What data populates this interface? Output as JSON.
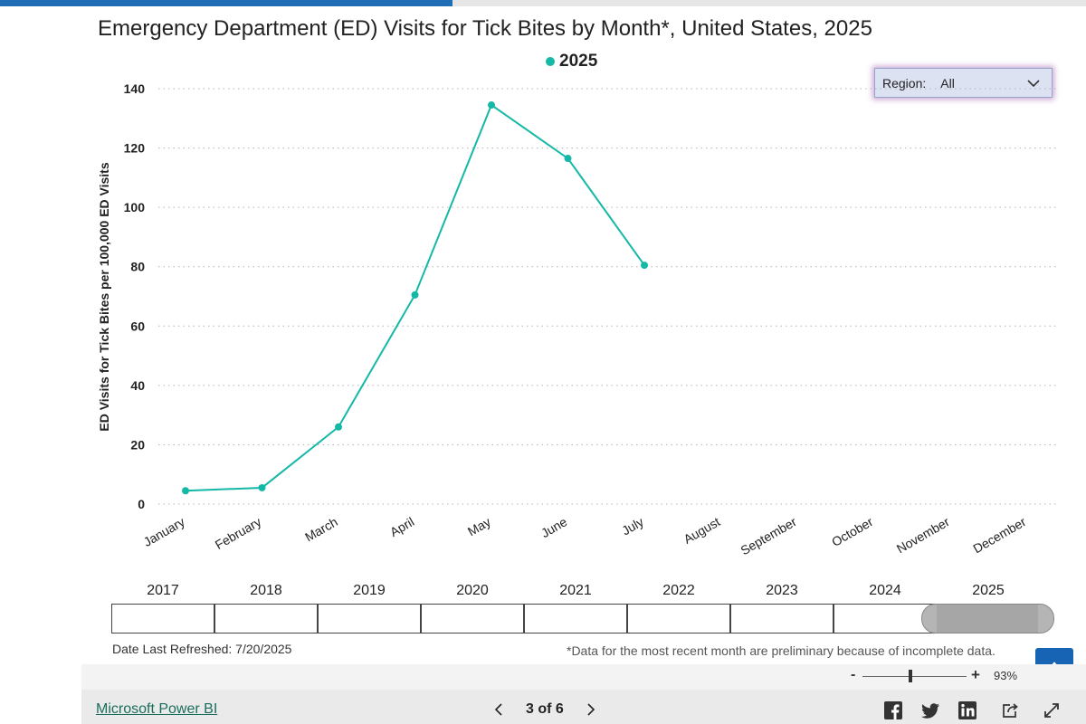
{
  "title": "Emergency Department (ED) Visits for Tick Bites by Month*, United States, 2025",
  "legend": {
    "label": "2025",
    "color": "#14b8a6"
  },
  "region_filter": {
    "label": "Region:",
    "value": "All"
  },
  "chart_data": {
    "type": "line",
    "title": "Emergency Department (ED) Visits for Tick Bites by Month*, United States, 2025",
    "ylabel": "ED Visits for Tick Bites per 100,000 ED Visits",
    "xlabel": "",
    "ylim": [
      0,
      140
    ],
    "yticks": [
      0,
      20,
      40,
      60,
      80,
      100,
      120,
      140
    ],
    "categories": [
      "January",
      "February",
      "March",
      "April",
      "May",
      "June",
      "July",
      "August",
      "September",
      "October",
      "November",
      "December"
    ],
    "series": [
      {
        "name": "2025",
        "color": "#14b8a6",
        "values": [
          4.5,
          5.5,
          26,
          70.5,
          134.5,
          116.5,
          80.5,
          null,
          null,
          null,
          null,
          null
        ]
      }
    ],
    "grid": true,
    "legend_position": "top-center"
  },
  "year_slicer": {
    "years": [
      "2017",
      "2018",
      "2019",
      "2020",
      "2021",
      "2022",
      "2023",
      "2024",
      "2025"
    ],
    "selected": "2025"
  },
  "refreshed": "Date Last Refreshed: 7/20/2025",
  "footnote": "*Data for the most recent month are preliminary because of incomplete data.",
  "zoom": {
    "minus": "-",
    "plus": "+",
    "value": "93%"
  },
  "footer": {
    "brand": "Microsoft Power BI",
    "page": "3 of 6"
  },
  "colors": {
    "accent": "#14b8a6",
    "scroll_button": "#1764b4",
    "progress": "#1f6db5"
  }
}
